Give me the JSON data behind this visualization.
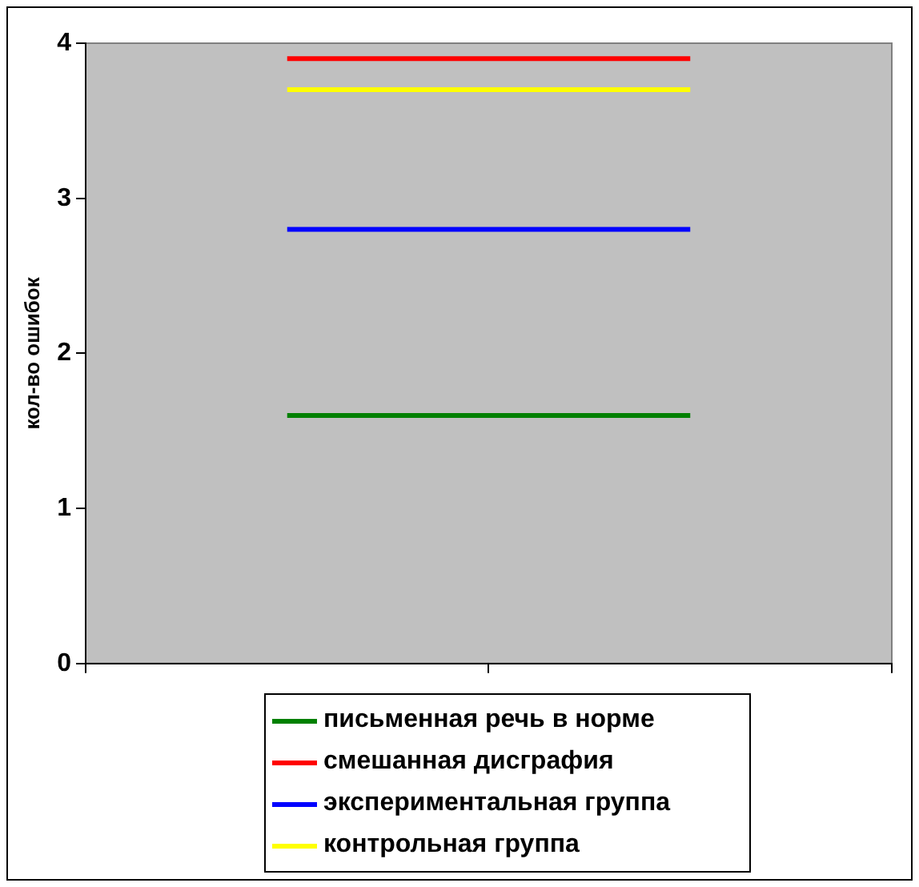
{
  "chart_data": {
    "type": "line",
    "ylabel": "кол-во ошибок",
    "categories": [
      null,
      null
    ],
    "ylim": [
      0,
      4
    ],
    "yticks": [
      0,
      1,
      2,
      3,
      4
    ],
    "grid": false,
    "legend": "bottom",
    "tick_labels": "y",
    "marker": "none",
    "line_style": "solid",
    "series": [
      {
        "name": "письменная речь в норме",
        "color": "#008000",
        "values": [
          1.6,
          1.6
        ]
      },
      {
        "name": "смешанная дисграфия",
        "color": "#ff0000",
        "values": [
          3.9,
          3.9
        ]
      },
      {
        "name": "экспериментальная группа",
        "color": "#0000ff",
        "values": [
          2.8,
          2.8
        ]
      },
      {
        "name": "контрольная группа",
        "color": "#ffff00",
        "values": [
          3.7,
          3.7
        ]
      }
    ]
  }
}
